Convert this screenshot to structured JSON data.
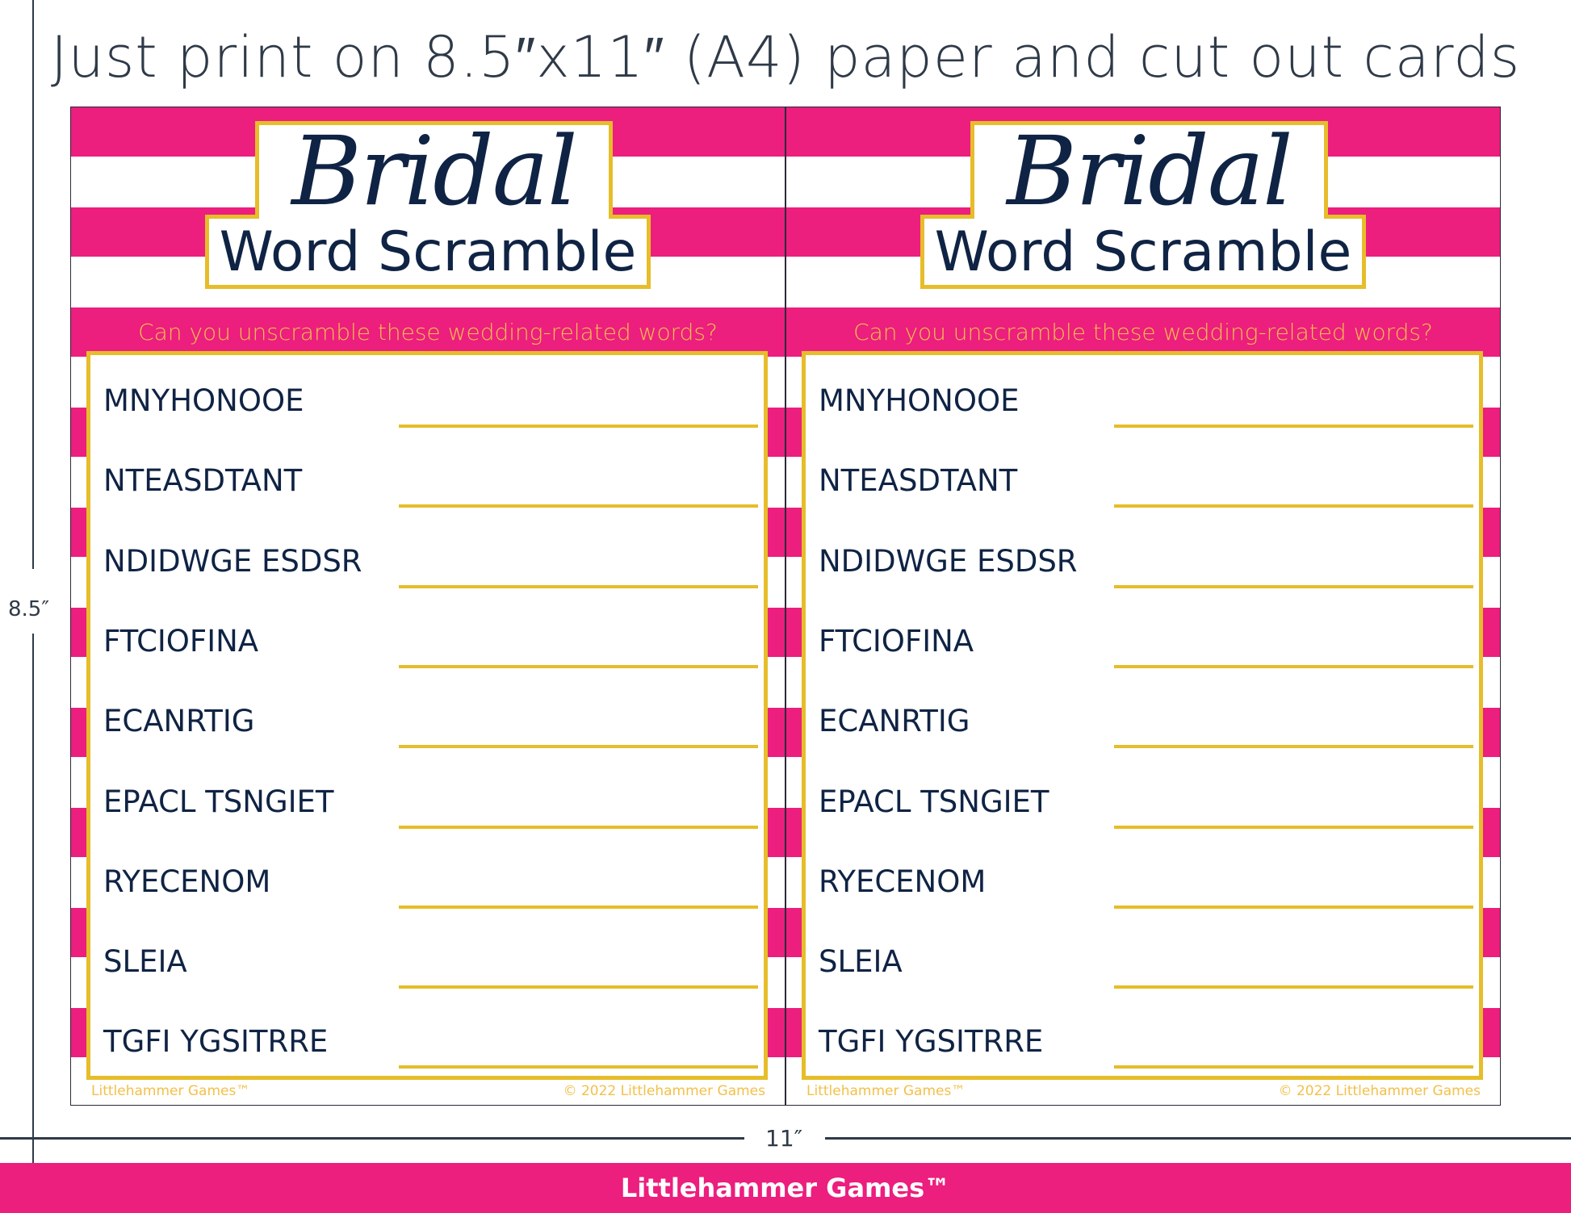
{
  "headline": "Just print on 8.5″x11″ (A4) paper and  cut out cards",
  "dimensions": {
    "height_label": "8.5″",
    "width_label": "11″"
  },
  "banner": "Littlehammer Games™",
  "colors": {
    "pink": "#ec1e7e",
    "gold": "#e6bd2a",
    "navy": "#0f2344"
  },
  "cards": [
    {
      "title_script": "Bridal",
      "title": "Word Scramble",
      "subtitle": "Can you unscramble these wedding-related words?",
      "words": [
        "MNYHONOOE",
        "NTEASDTANT",
        "NDIDWGE ESDSR",
        "FTCIOFINA",
        "ECANRTIG",
        "EPACL TSNGIET",
        "RYECENOM",
        "SLEIA",
        "TGFI YGSITRRE"
      ],
      "footer_left": "Littlehammer Games™",
      "footer_right": "© 2022 Littlehammer Games"
    },
    {
      "title_script": "Bridal",
      "title": "Word Scramble",
      "subtitle": "Can you unscramble these wedding-related words?",
      "words": [
        "MNYHONOOE",
        "NTEASDTANT",
        "NDIDWGE ESDSR",
        "FTCIOFINA",
        "ECANRTIG",
        "EPACL TSNGIET",
        "RYECENOM",
        "SLEIA",
        "TGFI YGSITRRE"
      ],
      "footer_left": "Littlehammer Games™",
      "footer_right": "© 2022 Littlehammer Games"
    }
  ]
}
